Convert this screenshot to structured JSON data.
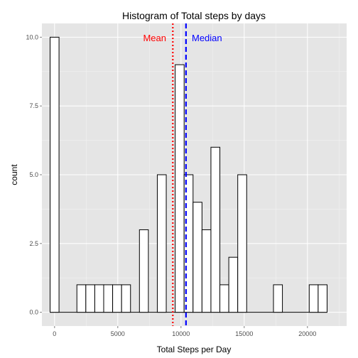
{
  "chart_data": {
    "type": "bar",
    "title": "Histogram of Total steps by days",
    "xlabel": "Total Steps per Day",
    "ylabel": "count",
    "binwidth": 706.7,
    "bins": [
      {
        "x": 0,
        "count": 10
      },
      {
        "x": 707,
        "count": 0
      },
      {
        "x": 1413,
        "count": 0
      },
      {
        "x": 2120,
        "count": 1
      },
      {
        "x": 2827,
        "count": 1
      },
      {
        "x": 3534,
        "count": 1
      },
      {
        "x": 4240,
        "count": 1
      },
      {
        "x": 4947,
        "count": 1
      },
      {
        "x": 5654,
        "count": 1
      },
      {
        "x": 6360,
        "count": 0
      },
      {
        "x": 7067,
        "count": 3
      },
      {
        "x": 7774,
        "count": 0
      },
      {
        "x": 8480,
        "count": 5
      },
      {
        "x": 9187,
        "count": 0
      },
      {
        "x": 9894,
        "count": 9
      },
      {
        "x": 10600,
        "count": 5
      },
      {
        "x": 11307,
        "count": 4
      },
      {
        "x": 12014,
        "count": 3
      },
      {
        "x": 12721,
        "count": 6
      },
      {
        "x": 13427,
        "count": 1
      },
      {
        "x": 14134,
        "count": 2
      },
      {
        "x": 14841,
        "count": 5
      },
      {
        "x": 15547,
        "count": 0
      },
      {
        "x": 16254,
        "count": 0
      },
      {
        "x": 16961,
        "count": 0
      },
      {
        "x": 17667,
        "count": 1
      },
      {
        "x": 18374,
        "count": 0
      },
      {
        "x": 19081,
        "count": 0
      },
      {
        "x": 19788,
        "count": 0
      },
      {
        "x": 20494,
        "count": 1
      },
      {
        "x": 21201,
        "count": 1
      }
    ],
    "xlim": [
      -1000,
      23100
    ],
    "ylim": [
      -0.5,
      10.5
    ],
    "xticks": [
      0,
      5000,
      10000,
      15000,
      20000
    ],
    "xtick_labels": [
      "0",
      "5000",
      "10000",
      "15000",
      "20000"
    ],
    "yticks": [
      0,
      2.5,
      5,
      7.5,
      10
    ],
    "ytick_labels": [
      "0.0",
      "2.5",
      "5.0",
      "7.5",
      "10.0"
    ],
    "grid": true,
    "vlines": [
      {
        "label": "Mean",
        "x": 9354,
        "color": "#ff0000",
        "style": "dotted"
      },
      {
        "label": "Median",
        "x": 10395,
        "color": "#0000ff",
        "style": "dashed"
      }
    ]
  }
}
